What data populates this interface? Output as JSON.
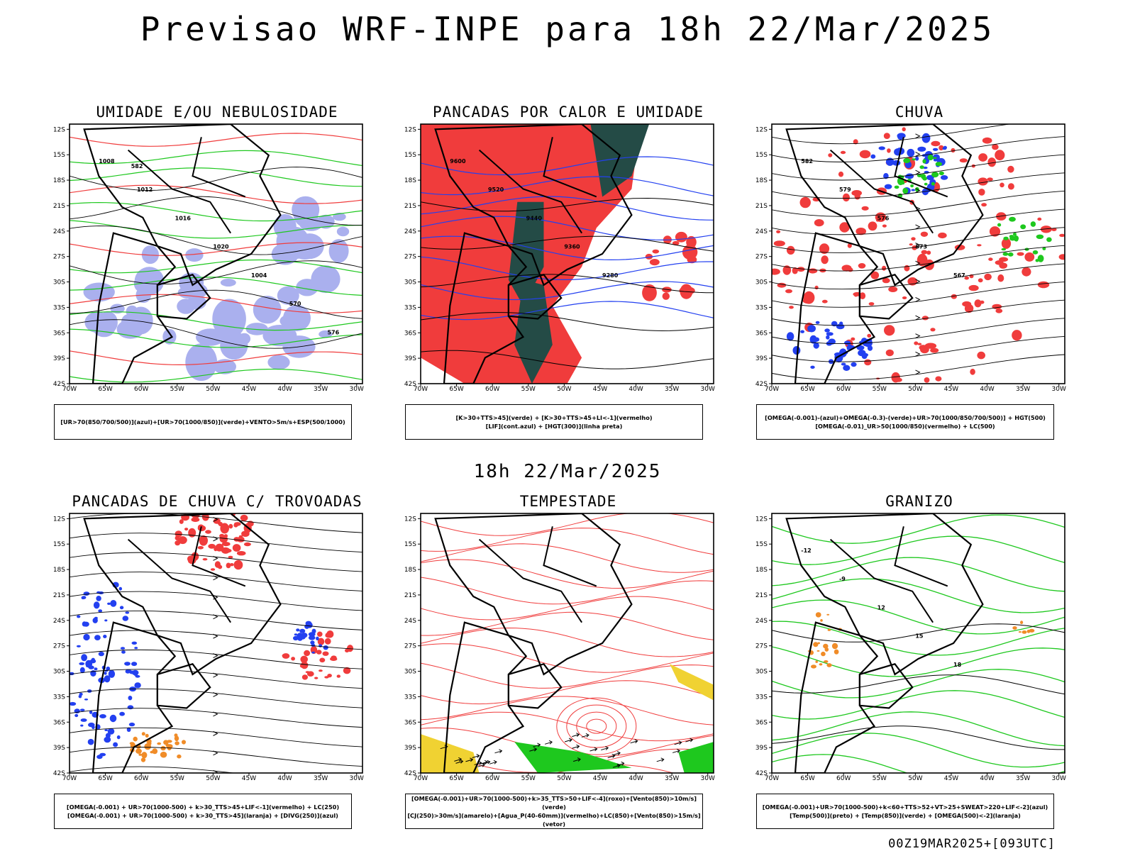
{
  "header": {
    "title": "Previsao WRF-INPE  para 18h 22/Mar/2025"
  },
  "mid_date": "18h 22/Mar/2025",
  "footer": "00Z19MAR2025+[093UTC]",
  "axes": {
    "lat_labels": [
      "12S",
      "15S",
      "18S",
      "21S",
      "24S",
      "27S",
      "30S",
      "33S",
      "36S",
      "39S",
      "42S"
    ],
    "lon_labels": [
      "70W",
      "65W",
      "60W",
      "55W",
      "50W",
      "45W",
      "40W",
      "35W",
      "30W"
    ]
  },
  "colors": {
    "red": "#f03c3c",
    "green": "#1ec81e",
    "blue": "#2340f0",
    "lavender": "#aab0ee",
    "darkteal": "#244b46",
    "orange": "#f08c28",
    "yellow": "#f0d232",
    "purple": "#c040c0"
  },
  "panels": [
    {
      "id": "umidade",
      "title": "UMIDADE E/OU NEBULOSIDADE",
      "legend": [
        "[UR>70(850/700/500)](azul)+[UR>70(1000/850)](verde)+VENTO>5m/s+ESP(500/1000)"
      ],
      "contour_labels": [
        "1008",
        "1012",
        "1016",
        "1020",
        "1004",
        "570",
        "576",
        "582"
      ]
    },
    {
      "id": "pancadas",
      "title": "PANCADAS POR CALOR E UMIDADE",
      "legend": [
        "[K>30+TTS>45](verde) + [K>30+TTS>45+LI<-1](vermelho)",
        "[LIF](cont.azul) + [HGT(300)](linha preta)"
      ],
      "contour_labels": [
        "9600",
        "9520",
        "9440",
        "9360",
        "9280"
      ]
    },
    {
      "id": "chuva",
      "title": "CHUVA",
      "legend": [
        "[OMEGA(-0.001)-(azul)+OMEGA(-0.3)-(verde)+UR>70(1000/850/700/500)] + HGT(500)",
        "[OMEGA(-0.01)_UR>50(1000/850)(vermelho) + LC(500)"
      ],
      "contour_labels": [
        "582",
        "579",
        "576",
        "573",
        "567"
      ]
    },
    {
      "id": "trovoadas",
      "title": "PANCADAS DE CHUVA C/ TROVOADAS",
      "legend": [
        "[OMEGA(-0.001) + UR>70(1000-500) + k>30_TTS>45+LIF<-1](vermelho) + LC(250)",
        "[OMEGA(-0.001) + UR>70(1000-500) + k>30_TTS>45](laranja) + [DIVG(250)](azul)"
      ],
      "contour_labels": []
    },
    {
      "id": "tempestade",
      "title": "TEMPESTADE",
      "legend": [
        "[OMEGA(-0.001)+UR>70(1000-500)+k>35_TTS>50+LIF<-4](roxo)+[Vento(850)>10m/s](verde)",
        "[CJ(250)>30m/s](amarelo)+[Agua_P(40-60mm)](vermelho)+LC(850)+[Vento(850)>15m/s](vetor)"
      ],
      "contour_labels": []
    },
    {
      "id": "granizo",
      "title": "GRANIZO",
      "legend": [
        "[OMEGA(-0.001)+UR>70(1000-500)+k<60+TTS>52+VT>25+SWEAT>220+LIF<-2](azul)",
        "[Temp(500)](preto) + [Temp(850)](verde) + [OMEGA(500)<-2](laranja)"
      ],
      "contour_labels": [
        "-12",
        "-9",
        "12",
        "15",
        "18"
      ]
    }
  ]
}
